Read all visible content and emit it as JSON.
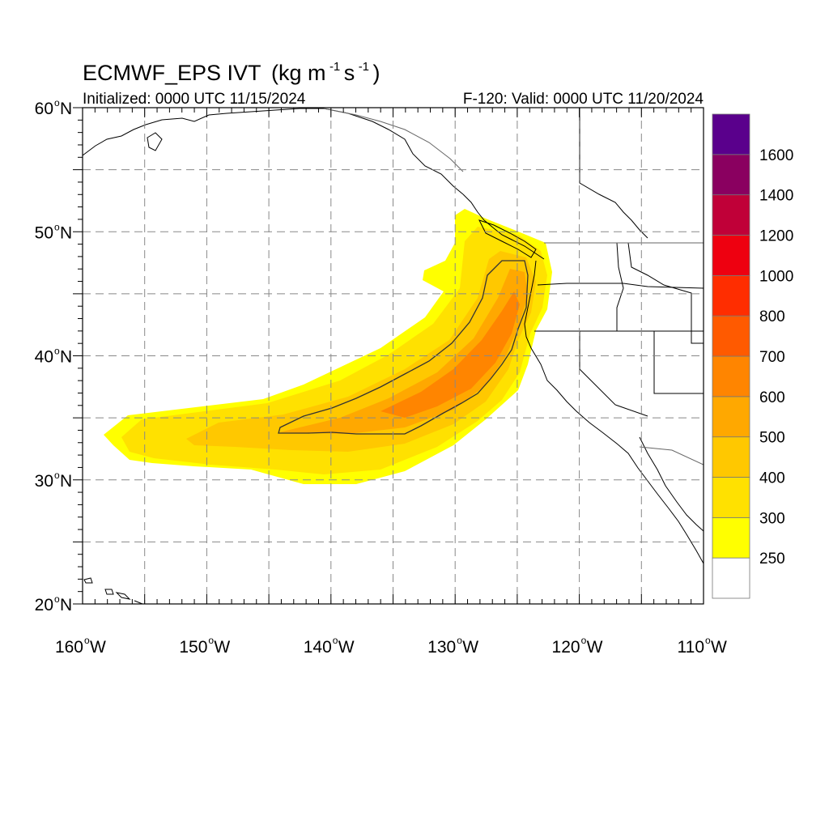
{
  "title": {
    "model": "ECMWF_EPS IVT",
    "units_open": "(kg m",
    "sup1": "-1",
    "mid": "s",
    "sup2": "-1",
    "units_close": ")"
  },
  "init_text": "Initialized: 0000 UTC 11/15/2024",
  "valid_text": "F-120: Valid: 0000 UTC 11/20/2024",
  "map": {
    "lon_range": [
      -160,
      -110
    ],
    "lat_range": [
      20,
      60
    ],
    "lat_labels": [
      {
        "text": "60",
        "hemi": "N",
        "lat": 60
      },
      {
        "text": "50",
        "hemi": "N",
        "lat": 50
      },
      {
        "text": "40",
        "hemi": "N",
        "lat": 40
      },
      {
        "text": "30",
        "hemi": "N",
        "lat": 30
      },
      {
        "text": "20",
        "hemi": "N",
        "lat": 20
      }
    ],
    "lon_labels": [
      {
        "text": "160",
        "hemi": "W",
        "lon": -160
      },
      {
        "text": "150",
        "hemi": "W",
        "lon": -150
      },
      {
        "text": "140",
        "hemi": "W",
        "lon": -140
      },
      {
        "text": "130",
        "hemi": "W",
        "lon": -130
      },
      {
        "text": "120",
        "hemi": "W",
        "lon": -120
      },
      {
        "text": "110",
        "hemi": "W",
        "lon": -110
      }
    ],
    "gridlines": "dashed every 5 degrees"
  },
  "colorbar": {
    "levels": [
      "250",
      "300",
      "400",
      "500",
      "600",
      "700",
      "800",
      "1000",
      "1200",
      "1400",
      "1600"
    ],
    "colors": [
      "#ffffff",
      "#ffff00",
      "#ffe100",
      "#ffc800",
      "#ffa800",
      "#ff8500",
      "#ff5a00",
      "#ff2d00",
      "#ee0010",
      "#c00038",
      "#8a0060",
      "#5a008c"
    ]
  },
  "ivt_field": {
    "regions": [
      {
        "level": 250,
        "color": "#ffff00"
      },
      {
        "level": 300,
        "color": "#ffe100"
      },
      {
        "level": 400,
        "color": "#ffc800"
      },
      {
        "level": 500,
        "color": "#ffa800"
      },
      {
        "level": 600,
        "color": "#ff8500"
      }
    ],
    "contour": "500"
  }
}
